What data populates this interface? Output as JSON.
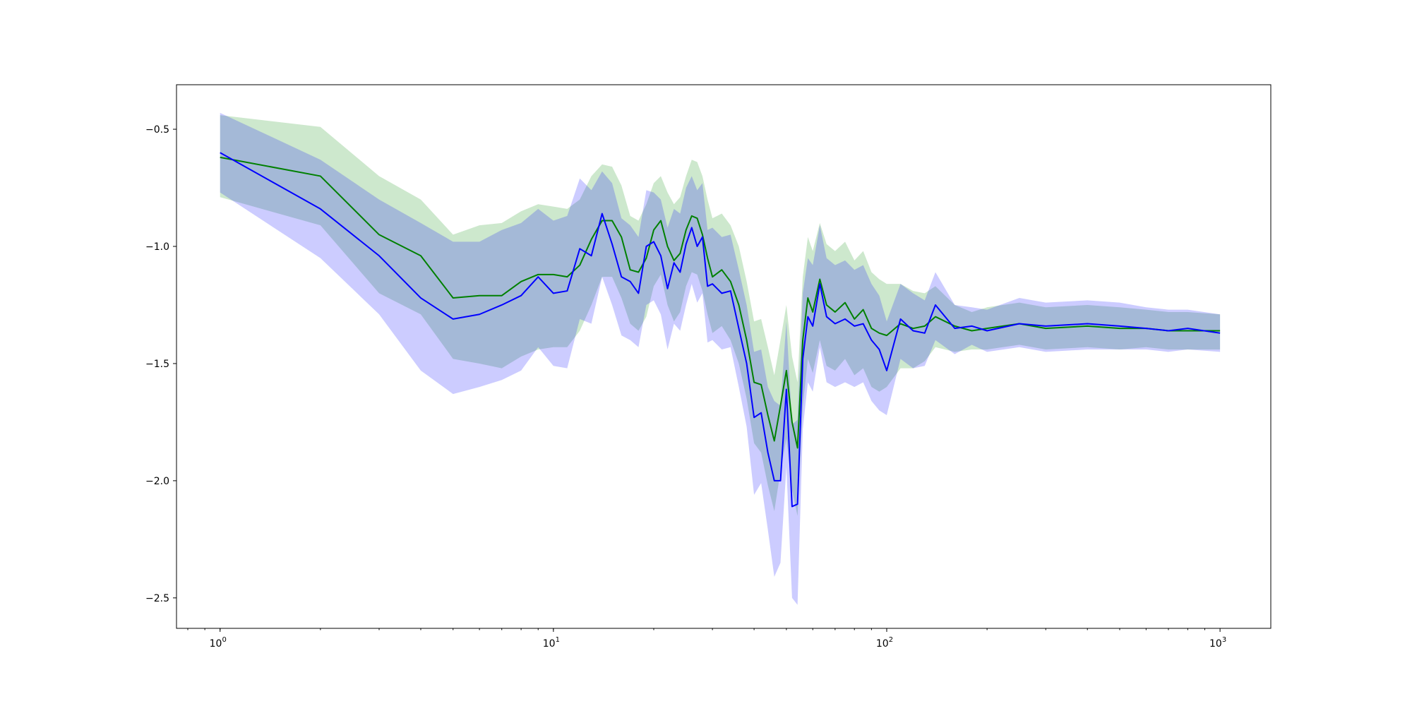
{
  "chart_data": {
    "type": "line",
    "title": "",
    "xlabel": "",
    "ylabel": "",
    "x_scale": "log",
    "xlim": [
      0.74,
      1420
    ],
    "ylim": [
      -2.63,
      -0.31
    ],
    "grid": false,
    "x_ticks": [
      {
        "base": "10",
        "exp": "0",
        "value": 1
      },
      {
        "base": "10",
        "exp": "1",
        "value": 10
      },
      {
        "base": "10",
        "exp": "2",
        "value": 100
      },
      {
        "base": "10",
        "exp": "3",
        "value": 1000
      }
    ],
    "y_ticks": [
      {
        "label": "−0.5",
        "value": -0.5
      },
      {
        "label": "−1.0",
        "value": -1.0
      },
      {
        "label": "−1.5",
        "value": -1.5
      },
      {
        "label": "−2.0",
        "value": -2.0
      },
      {
        "label": "−2.5",
        "value": -2.5
      }
    ],
    "series": [
      {
        "color": "#008000",
        "band_color": "#2ca02c",
        "band_opacity": 0.24,
        "points": [
          [
            1,
            -0.62,
            -0.79,
            -0.44
          ],
          [
            2,
            -0.7,
            -0.91,
            -0.49
          ],
          [
            3,
            -0.95,
            -1.2,
            -0.7
          ],
          [
            4,
            -1.04,
            -1.29,
            -0.8
          ],
          [
            5,
            -1.22,
            -1.48,
            -0.95
          ],
          [
            6,
            -1.21,
            -1.5,
            -0.91
          ],
          [
            7,
            -1.21,
            -1.52,
            -0.9
          ],
          [
            8,
            -1.15,
            -1.47,
            -0.85
          ],
          [
            9,
            -1.12,
            -1.44,
            -0.82
          ],
          [
            10,
            -1.12,
            -1.43,
            -0.83
          ],
          [
            11,
            -1.13,
            -1.43,
            -0.84
          ],
          [
            12,
            -1.08,
            -1.36,
            -0.8
          ],
          [
            13,
            -0.97,
            -1.25,
            -0.7
          ],
          [
            14,
            -0.89,
            -1.13,
            -0.65
          ],
          [
            15,
            -0.89,
            -1.13,
            -0.66
          ],
          [
            16,
            -0.96,
            -1.22,
            -0.74
          ],
          [
            17,
            -1.1,
            -1.33,
            -0.87
          ],
          [
            18,
            -1.11,
            -1.36,
            -0.89
          ],
          [
            19,
            -1.05,
            -1.3,
            -0.82
          ],
          [
            20,
            -0.93,
            -1.17,
            -0.73
          ],
          [
            21,
            -0.89,
            -1.12,
            -0.7
          ],
          [
            22,
            -1.0,
            -1.25,
            -0.77
          ],
          [
            23,
            -1.06,
            -1.32,
            -0.82
          ],
          [
            24,
            -1.03,
            -1.28,
            -0.79
          ],
          [
            25,
            -0.93,
            -1.17,
            -0.7
          ],
          [
            26,
            -0.87,
            -1.11,
            -0.63
          ],
          [
            27,
            -0.88,
            -1.12,
            -0.64
          ],
          [
            28,
            -0.95,
            -1.19,
            -0.7
          ],
          [
            29,
            -1.05,
            -1.29,
            -0.8
          ],
          [
            30,
            -1.13,
            -1.37,
            -0.88
          ],
          [
            32,
            -1.1,
            -1.34,
            -0.86
          ],
          [
            34,
            -1.15,
            -1.4,
            -0.91
          ],
          [
            36,
            -1.25,
            -1.5,
            -1.0
          ],
          [
            38,
            -1.4,
            -1.65,
            -1.15
          ],
          [
            40,
            -1.58,
            -1.84,
            -1.32
          ],
          [
            42,
            -1.59,
            -1.88,
            -1.31
          ],
          [
            44,
            -1.72,
            -2.02,
            -1.43
          ],
          [
            46,
            -1.83,
            -2.13,
            -1.55
          ],
          [
            48,
            -1.68,
            -1.96,
            -1.4
          ],
          [
            50,
            -1.53,
            -1.82,
            -1.25
          ],
          [
            52,
            -1.75,
            -2.04,
            -1.47
          ],
          [
            54,
            -1.86,
            -2.15,
            -1.58
          ],
          [
            56,
            -1.4,
            -1.68,
            -1.13
          ],
          [
            58,
            -1.22,
            -1.48,
            -0.96
          ],
          [
            60,
            -1.28,
            -1.54,
            -1.02
          ],
          [
            63,
            -1.14,
            -1.4,
            -0.9
          ],
          [
            66,
            -1.25,
            -1.51,
            -0.99
          ],
          [
            70,
            -1.28,
            -1.53,
            -1.02
          ],
          [
            75,
            -1.24,
            -1.48,
            -0.98
          ],
          [
            80,
            -1.31,
            -1.55,
            -1.06
          ],
          [
            85,
            -1.27,
            -1.52,
            -1.02
          ],
          [
            90,
            -1.35,
            -1.6,
            -1.11
          ],
          [
            95,
            -1.37,
            -1.62,
            -1.14
          ],
          [
            100,
            -1.38,
            -1.6,
            -1.16
          ],
          [
            110,
            -1.33,
            -1.52,
            -1.16
          ],
          [
            120,
            -1.35,
            -1.52,
            -1.19
          ],
          [
            130,
            -1.34,
            -1.49,
            -1.2
          ],
          [
            140,
            -1.3,
            -1.43,
            -1.17
          ],
          [
            160,
            -1.34,
            -1.45,
            -1.25
          ],
          [
            180,
            -1.36,
            -1.44,
            -1.28
          ],
          [
            200,
            -1.35,
            -1.44,
            -1.26
          ],
          [
            250,
            -1.33,
            -1.42,
            -1.24
          ],
          [
            300,
            -1.35,
            -1.44,
            -1.26
          ],
          [
            400,
            -1.34,
            -1.43,
            -1.25
          ],
          [
            500,
            -1.35,
            -1.44,
            -1.26
          ],
          [
            600,
            -1.35,
            -1.43,
            -1.27
          ],
          [
            700,
            -1.36,
            -1.44,
            -1.28
          ],
          [
            800,
            -1.36,
            -1.44,
            -1.28
          ],
          [
            1000,
            -1.36,
            -1.44,
            -1.29
          ]
        ]
      },
      {
        "color": "#0000ff",
        "band_color": "#0000ff",
        "band_opacity": 0.2,
        "points": [
          [
            1,
            -0.6,
            -0.77,
            -0.43
          ],
          [
            2,
            -0.84,
            -1.05,
            -0.63
          ],
          [
            3,
            -1.04,
            -1.29,
            -0.8
          ],
          [
            4,
            -1.22,
            -1.53,
            -0.9
          ],
          [
            5,
            -1.31,
            -1.63,
            -0.98
          ],
          [
            6,
            -1.29,
            -1.6,
            -0.98
          ],
          [
            7,
            -1.25,
            -1.57,
            -0.93
          ],
          [
            8,
            -1.21,
            -1.53,
            -0.9
          ],
          [
            9,
            -1.13,
            -1.43,
            -0.84
          ],
          [
            10,
            -1.2,
            -1.51,
            -0.89
          ],
          [
            11,
            -1.19,
            -1.52,
            -0.87
          ],
          [
            12,
            -1.01,
            -1.31,
            -0.71
          ],
          [
            13,
            -1.04,
            -1.33,
            -0.76
          ],
          [
            14,
            -0.86,
            -1.13,
            -0.68
          ],
          [
            15,
            -0.99,
            -1.25,
            -0.73
          ],
          [
            16,
            -1.13,
            -1.38,
            -0.88
          ],
          [
            17,
            -1.15,
            -1.4,
            -0.91
          ],
          [
            18,
            -1.2,
            -1.43,
            -0.96
          ],
          [
            19,
            -1.0,
            -1.25,
            -0.76
          ],
          [
            20,
            -0.98,
            -1.23,
            -0.77
          ],
          [
            21,
            -1.04,
            -1.29,
            -0.8
          ],
          [
            22,
            -1.18,
            -1.44,
            -0.92
          ],
          [
            23,
            -1.07,
            -1.33,
            -0.84
          ],
          [
            24,
            -1.11,
            -1.36,
            -0.86
          ],
          [
            25,
            -0.99,
            -1.25,
            -0.75
          ],
          [
            26,
            -0.92,
            -1.16,
            -0.7
          ],
          [
            27,
            -1.0,
            -1.24,
            -0.76
          ],
          [
            28,
            -0.96,
            -1.2,
            -0.73
          ],
          [
            29,
            -1.17,
            -1.41,
            -0.93
          ],
          [
            30,
            -1.16,
            -1.4,
            -0.92
          ],
          [
            32,
            -1.2,
            -1.44,
            -0.96
          ],
          [
            34,
            -1.19,
            -1.43,
            -0.95
          ],
          [
            36,
            -1.35,
            -1.6,
            -1.1
          ],
          [
            38,
            -1.5,
            -1.77,
            -1.25
          ],
          [
            40,
            -1.73,
            -2.06,
            -1.45
          ],
          [
            42,
            -1.71,
            -2.01,
            -1.44
          ],
          [
            44,
            -1.88,
            -2.21,
            -1.6
          ],
          [
            46,
            -2.0,
            -2.41,
            -1.66
          ],
          [
            48,
            -2.0,
            -2.35,
            -1.68
          ],
          [
            50,
            -1.61,
            -1.94,
            -1.32
          ],
          [
            52,
            -2.11,
            -2.5,
            -1.76
          ],
          [
            54,
            -2.1,
            -2.53,
            -1.74
          ],
          [
            56,
            -1.48,
            -1.78,
            -1.2
          ],
          [
            58,
            -1.3,
            -1.58,
            -1.05
          ],
          [
            60,
            -1.34,
            -1.62,
            -1.08
          ],
          [
            63,
            -1.16,
            -1.43,
            -0.91
          ],
          [
            66,
            -1.3,
            -1.58,
            -1.05
          ],
          [
            70,
            -1.33,
            -1.6,
            -1.08
          ],
          [
            75,
            -1.31,
            -1.58,
            -1.06
          ],
          [
            80,
            -1.34,
            -1.6,
            -1.1
          ],
          [
            85,
            -1.33,
            -1.58,
            -1.08
          ],
          [
            90,
            -1.4,
            -1.66,
            -1.16
          ],
          [
            95,
            -1.44,
            -1.7,
            -1.21
          ],
          [
            100,
            -1.53,
            -1.72,
            -1.32
          ],
          [
            110,
            -1.31,
            -1.48,
            -1.16
          ],
          [
            120,
            -1.36,
            -1.52,
            -1.2
          ],
          [
            130,
            -1.37,
            -1.51,
            -1.23
          ],
          [
            140,
            -1.25,
            -1.4,
            -1.11
          ],
          [
            160,
            -1.35,
            -1.46,
            -1.25
          ],
          [
            180,
            -1.34,
            -1.42,
            -1.26
          ],
          [
            200,
            -1.36,
            -1.45,
            -1.27
          ],
          [
            250,
            -1.33,
            -1.43,
            -1.22
          ],
          [
            300,
            -1.34,
            -1.45,
            -1.24
          ],
          [
            400,
            -1.33,
            -1.44,
            -1.23
          ],
          [
            500,
            -1.34,
            -1.44,
            -1.24
          ],
          [
            600,
            -1.35,
            -1.44,
            -1.26
          ],
          [
            700,
            -1.36,
            -1.45,
            -1.27
          ],
          [
            800,
            -1.35,
            -1.44,
            -1.27
          ],
          [
            1000,
            -1.37,
            -1.45,
            -1.29
          ]
        ]
      }
    ]
  }
}
